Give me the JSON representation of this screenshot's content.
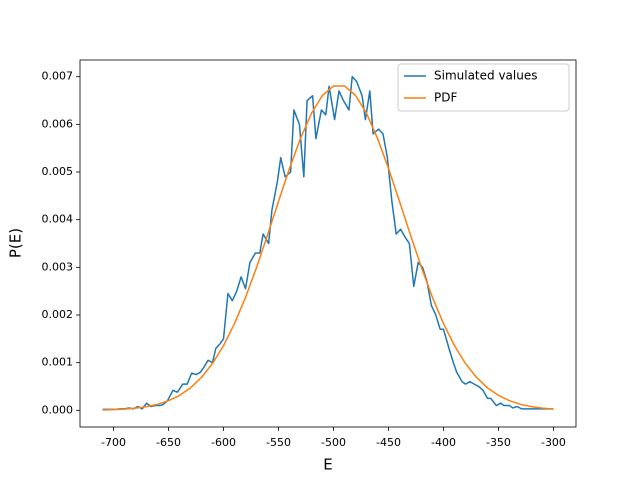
{
  "chart_data": {
    "type": "line",
    "x_label": "E",
    "y_label": "P(E)",
    "xlim": [
      -730.5,
      -279.5
    ],
    "ylim": [
      -0.00035,
      0.00735
    ],
    "xticks": [
      -700,
      -650,
      -600,
      -550,
      -500,
      -450,
      -400,
      -350,
      -300
    ],
    "yticks": [
      {
        "value": 0,
        "label": "0.000"
      },
      {
        "value": 0.001,
        "label": "0.001"
      },
      {
        "value": 0.002,
        "label": "0.002"
      },
      {
        "value": 0.003,
        "label": "0.003"
      },
      {
        "value": 0.004,
        "label": "0.004"
      },
      {
        "value": 0.005,
        "label": "0.005"
      },
      {
        "value": 0.006,
        "label": "0.006"
      },
      {
        "value": 0.007,
        "label": "0.007"
      }
    ],
    "legend": "upper right",
    "series": [
      {
        "name": "Simulated values",
        "color": "#1f77b4",
        "x": [
          -710,
          -706,
          -702,
          -698,
          -694,
          -690,
          -686,
          -682,
          -678,
          -674,
          -670,
          -666,
          -662,
          -658,
          -655,
          -651,
          -646,
          -642,
          -637,
          -633,
          -629,
          -625,
          -621,
          -618,
          -614,
          -610,
          -607,
          -603,
          -600,
          -596,
          -592,
          -588,
          -584,
          -580,
          -576,
          -571,
          -567,
          -564,
          -559,
          -556,
          -551,
          -548,
          -544,
          -539,
          -536,
          -531,
          -527,
          -524,
          -519,
          -516,
          -511,
          -507,
          -504,
          -499,
          -495,
          -491,
          -486,
          -483,
          -479,
          -474,
          -471,
          -467,
          -464,
          -459,
          -455,
          -451,
          -447,
          -443,
          -439,
          -434,
          -431,
          -427,
          -423,
          -419,
          -415,
          -411,
          -407,
          -403,
          -400,
          -395,
          -391,
          -388,
          -383,
          -380,
          -376,
          -372,
          -368,
          -364,
          -360,
          -357,
          -352,
          -348,
          -345,
          -340,
          -337,
          -333,
          -329,
          -325,
          -321,
          -316,
          -312,
          -308,
          -304,
          -300
        ],
        "values": [
          2e-05,
          2e-05,
          2e-05,
          2e-05,
          3e-05,
          3e-05,
          5e-05,
          3e-05,
          8e-05,
          3e-05,
          0.00015,
          8e-05,
          0.0001,
          0.0001,
          0.00012,
          0.0002,
          0.00042,
          0.00038,
          0.00055,
          0.00055,
          0.00078,
          0.00075,
          0.0008,
          0.0009,
          0.00105,
          0.001,
          0.0013,
          0.0014,
          0.0015,
          0.00245,
          0.0023,
          0.0025,
          0.0028,
          0.00255,
          0.0031,
          0.0033,
          0.0033,
          0.0037,
          0.0035,
          0.0042,
          0.0048,
          0.0053,
          0.0049,
          0.005,
          0.0063,
          0.006,
          0.0049,
          0.0065,
          0.0066,
          0.0057,
          0.0063,
          0.0062,
          0.0068,
          0.0061,
          0.0067,
          0.0065,
          0.0063,
          0.007,
          0.0069,
          0.0066,
          0.0061,
          0.0067,
          0.0058,
          0.0059,
          0.0058,
          0.0053,
          0.0044,
          0.0037,
          0.0038,
          0.0036,
          0.0035,
          0.0026,
          0.0031,
          0.003,
          0.0027,
          0.0022,
          0.002,
          0.0017,
          0.0017,
          0.0013,
          0.001,
          0.0008,
          0.0006,
          0.00055,
          0.0006,
          0.00055,
          0.0005,
          0.00042,
          0.00025,
          0.00025,
          0.0001,
          0.00015,
          0.0001,
          0.0001,
          5e-05,
          8e-05,
          3e-05,
          3e-05,
          3e-05,
          3e-05,
          3e-05,
          3e-05,
          3e-05,
          3e-05
        ]
      },
      {
        "name": "PDF",
        "color": "#ff7f0e",
        "x": [
          -710,
          -700,
          -690,
          -680,
          -670,
          -660,
          -650,
          -640,
          -630,
          -620,
          -610,
          -600,
          -590,
          -580,
          -570,
          -560,
          -550,
          -540,
          -530,
          -520,
          -510,
          -500,
          -490,
          -480,
          -470,
          -460,
          -450,
          -440,
          -430,
          -420,
          -410,
          -400,
          -390,
          -380,
          -370,
          -360,
          -350,
          -340,
          -330,
          -320,
          -310,
          -300
        ],
        "values": [
          7.8e-06,
          1.44e-05,
          2.6e-05,
          4.5e-05,
          7.7e-05,
          0.000126,
          0.000202,
          0.000313,
          0.000472,
          0.000691,
          0.000983,
          0.001357,
          0.00182,
          0.002369,
          0.002994,
          0.003677,
          0.004383,
          0.005076,
          0.005707,
          0.006232,
          0.006608,
          0.006805,
          0.006805,
          0.006608,
          0.006232,
          0.005707,
          0.005076,
          0.004383,
          0.003677,
          0.002994,
          0.002369,
          0.00182,
          0.001357,
          0.000983,
          0.000691,
          0.000472,
          0.000313,
          0.000202,
          0.000126,
          7.7e-05,
          4.5e-05,
          2.6e-05
        ]
      }
    ]
  }
}
